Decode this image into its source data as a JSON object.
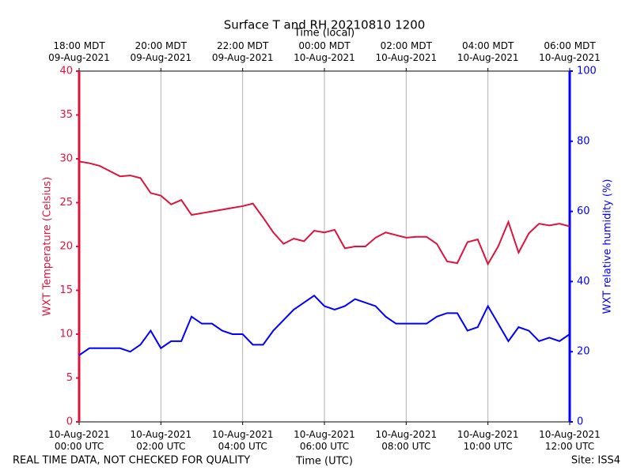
{
  "chart_data": {
    "type": "line",
    "title": "Surface T and RH 20210810 1200",
    "x_label": "Time (UTC)",
    "x2_label": "Time (local)",
    "y_label": "WXT Temperature (Celsius)",
    "y2_label": "WXT relative humidity (%)",
    "footer_left": "REAL TIME DATA, NOT CHECKED FOR QUALITY",
    "footer_right": "Site: ISS4",
    "x": [
      0,
      0.25,
      0.5,
      0.75,
      1,
      1.25,
      1.5,
      1.75,
      2,
      2.25,
      2.5,
      2.75,
      3,
      3.25,
      3.5,
      3.75,
      4,
      4.25,
      4.5,
      4.75,
      5,
      5.25,
      5.5,
      5.75,
      6,
      6.25,
      6.5,
      6.75,
      7,
      7.25,
      7.5,
      7.75,
      8,
      8.25,
      8.5,
      8.75,
      9,
      9.25,
      9.5,
      9.75,
      10,
      10.25,
      10.5,
      10.75,
      11,
      11.25,
      11.5,
      11.75,
      12
    ],
    "xlim": [
      0,
      12
    ],
    "xticks": [
      {
        "value": 0,
        "label": [
          "10-Aug-2021",
          "00:00 UTC"
        ]
      },
      {
        "value": 2,
        "label": [
          "10-Aug-2021",
          "02:00 UTC"
        ]
      },
      {
        "value": 4,
        "label": [
          "10-Aug-2021",
          "04:00 UTC"
        ]
      },
      {
        "value": 6,
        "label": [
          "10-Aug-2021",
          "06:00 UTC"
        ]
      },
      {
        "value": 8,
        "label": [
          "10-Aug-2021",
          "08:00 UTC"
        ]
      },
      {
        "value": 10,
        "label": [
          "10-Aug-2021",
          "10:00 UTC"
        ]
      },
      {
        "value": 12,
        "label": [
          "10-Aug-2021",
          "12:00 UTC"
        ]
      }
    ],
    "x2ticks": [
      {
        "value": 0,
        "label": [
          "18:00 MDT",
          "09-Aug-2021"
        ]
      },
      {
        "value": 2,
        "label": [
          "20:00 MDT",
          "09-Aug-2021"
        ]
      },
      {
        "value": 4,
        "label": [
          "22:00 MDT",
          "09-Aug-2021"
        ]
      },
      {
        "value": 6,
        "label": [
          "00:00 MDT",
          "10-Aug-2021"
        ]
      },
      {
        "value": 8,
        "label": [
          "02:00 MDT",
          "10-Aug-2021"
        ]
      },
      {
        "value": 10,
        "label": [
          "04:00 MDT",
          "10-Aug-2021"
        ]
      },
      {
        "value": 12,
        "label": [
          "06:00 MDT",
          "10-Aug-2021"
        ]
      }
    ],
    "ylim": [
      0,
      40
    ],
    "yticks": [
      0,
      5,
      10,
      15,
      20,
      25,
      30,
      35,
      40
    ],
    "y2lim": [
      0,
      100
    ],
    "y2ticks": [
      0,
      20,
      40,
      60,
      80,
      100
    ],
    "grid": "x",
    "series": [
      {
        "name": "WXT Temperature",
        "color": "#dc143c",
        "axis": "y",
        "values": [
          29.7,
          29.5,
          29.2,
          28.6,
          28.0,
          28.1,
          27.8,
          26.1,
          25.8,
          24.8,
          25.3,
          23.6,
          23.8,
          24.0,
          24.2,
          24.4,
          24.6,
          24.9,
          23.3,
          21.6,
          20.3,
          20.9,
          20.6,
          21.8,
          21.6,
          21.9,
          19.8,
          20.0,
          20.0,
          21.0,
          21.6,
          21.3,
          21.0,
          21.1,
          21.1,
          20.3,
          18.3,
          18.1,
          20.5,
          20.8,
          18.0,
          20.0,
          22.8,
          19.3,
          21.5,
          22.6,
          22.4,
          22.6,
          22.3
        ]
      },
      {
        "name": "WXT relative humidity",
        "color": "#0000ff",
        "axis": "y2",
        "values": [
          19,
          21,
          21,
          21,
          21,
          20,
          22,
          26,
          21,
          23,
          23,
          30,
          28,
          28,
          26,
          25,
          25,
          22,
          22,
          26,
          29,
          32,
          34,
          36,
          33,
          32,
          33,
          35,
          34,
          33,
          30,
          28,
          28,
          28,
          28,
          30,
          31,
          31,
          26,
          27,
          33,
          28,
          23,
          27,
          26,
          23,
          24,
          23,
          25
        ]
      }
    ]
  }
}
